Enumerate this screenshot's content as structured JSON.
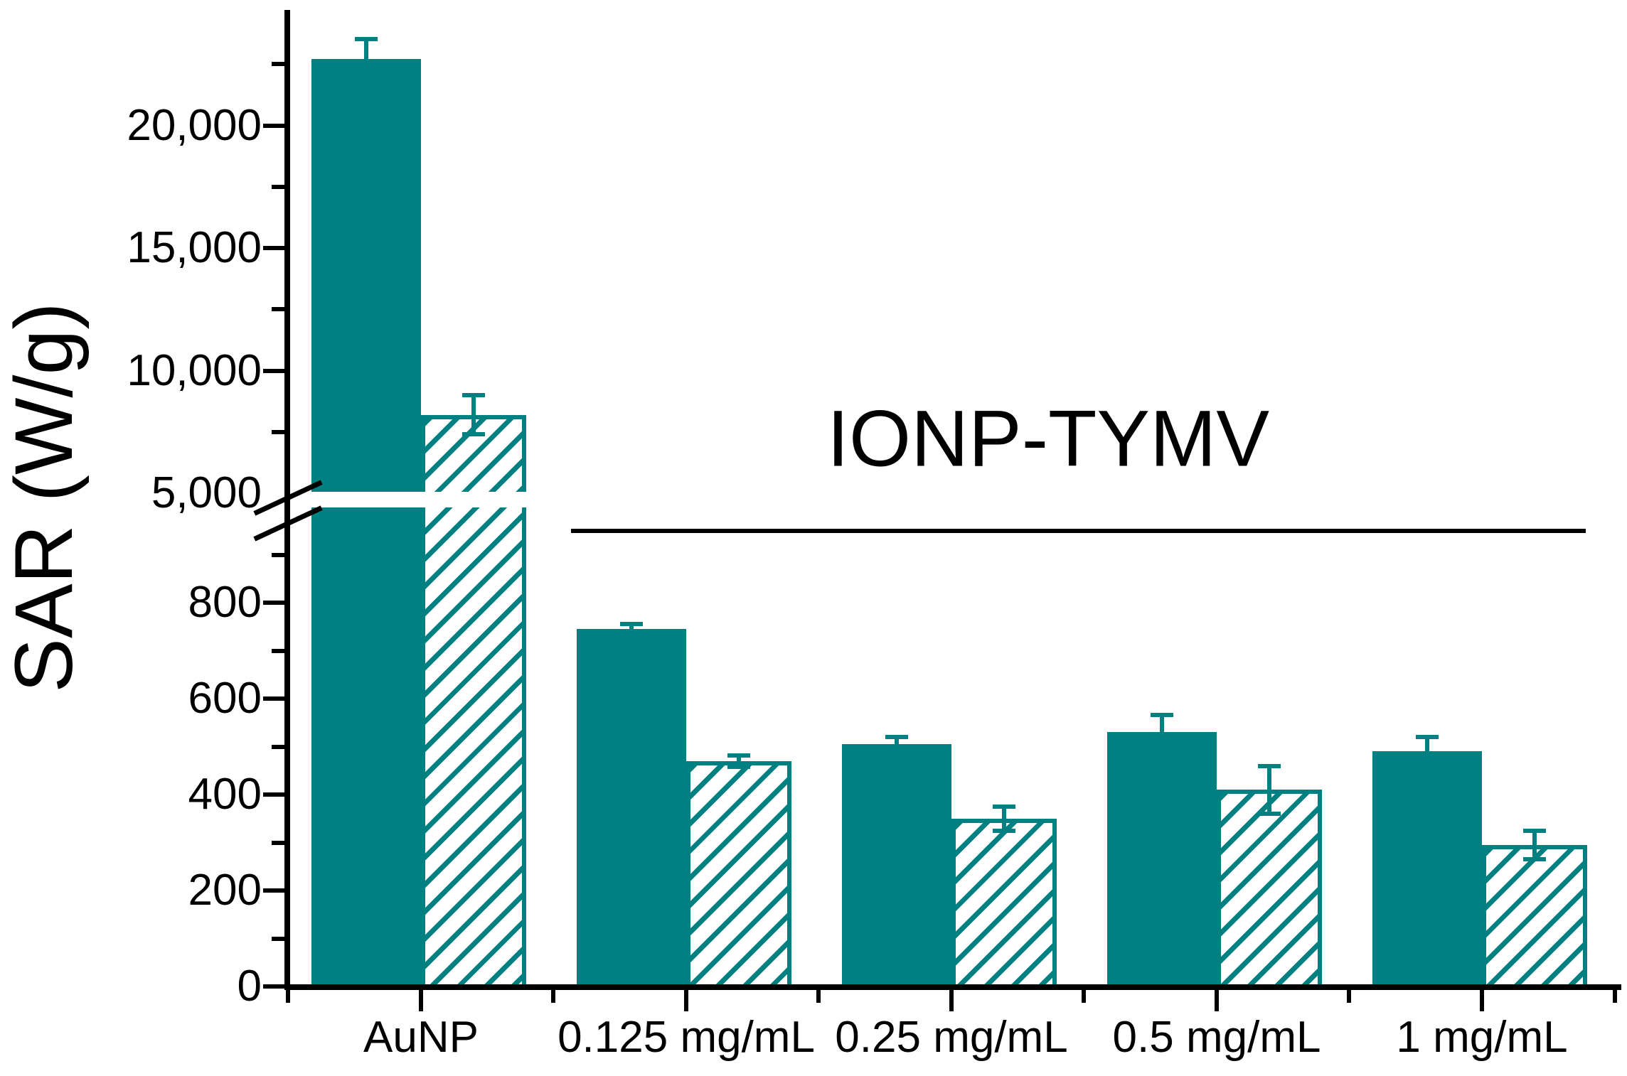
{
  "colors": {
    "bar_fill": "#008080",
    "axis": "#000000",
    "text": "#000000"
  },
  "y_axis": {
    "title": "SAR (W/g)",
    "upper_ticks": [
      {
        "value": 20000,
        "label": "20,000"
      },
      {
        "value": 15000,
        "label": "15,000"
      },
      {
        "value": 10000,
        "label": "10,000"
      },
      {
        "value": 5000,
        "label": "5,000"
      }
    ],
    "upper_minor_ticks": [
      22500,
      17500,
      12500,
      7500
    ],
    "lower_ticks": [
      {
        "value": 800,
        "label": "800"
      },
      {
        "value": 600,
        "label": "600"
      },
      {
        "value": 400,
        "label": "400"
      },
      {
        "value": 200,
        "label": "200"
      },
      {
        "value": 0,
        "label": "0"
      }
    ],
    "lower_minor_ticks": [
      900,
      700,
      500,
      300,
      100
    ]
  },
  "annotation": {
    "label": "IONP-TYMV"
  },
  "chart_data": {
    "type": "bar",
    "title": "",
    "xlabel": "",
    "ylabel": "SAR (W/g)",
    "categories": [
      "AuNP",
      "0.125 mg/mL",
      "0.25 mg/mL",
      "0.5 mg/mL",
      "1 mg/mL"
    ],
    "series": [
      {
        "name": "solid",
        "values": [
          22700,
          745,
          505,
          530,
          490
        ],
        "errors": [
          900,
          15,
          20,
          40,
          35
        ]
      },
      {
        "name": "hatched",
        "values": [
          8200,
          470,
          350,
          410,
          295
        ],
        "errors": [
          800,
          12,
          25,
          50,
          30
        ]
      }
    ],
    "broken_axis": {
      "lower_range": [
        0,
        1000
      ],
      "upper_range": [
        5000,
        25000
      ],
      "break_at_label": 5000
    },
    "grid": false,
    "legend": "none",
    "annotation": "IONP-TYMV"
  }
}
